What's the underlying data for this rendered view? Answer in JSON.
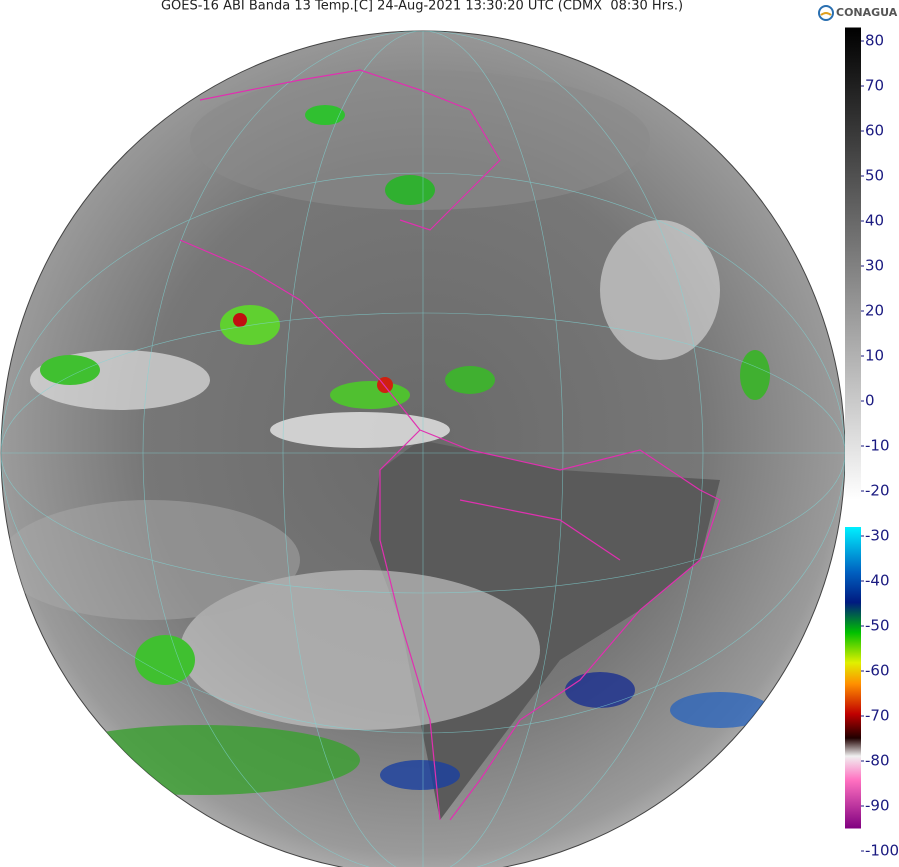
{
  "header": {
    "title": "GOES-16 ABI Banda 13 Temp.[C] 24-Aug-2021 13:30:20 UTC (CDMX  08:30 Hrs.)",
    "logo": "CONAGUA"
  },
  "colorbar": {
    "lim": [
      -95,
      83
    ],
    "ticks": [
      80,
      70,
      60,
      50,
      40,
      30,
      20,
      10,
      0,
      -10,
      -20,
      -30,
      -40,
      -50,
      -60,
      -70,
      -80,
      -90,
      -100
    ]
  }
}
